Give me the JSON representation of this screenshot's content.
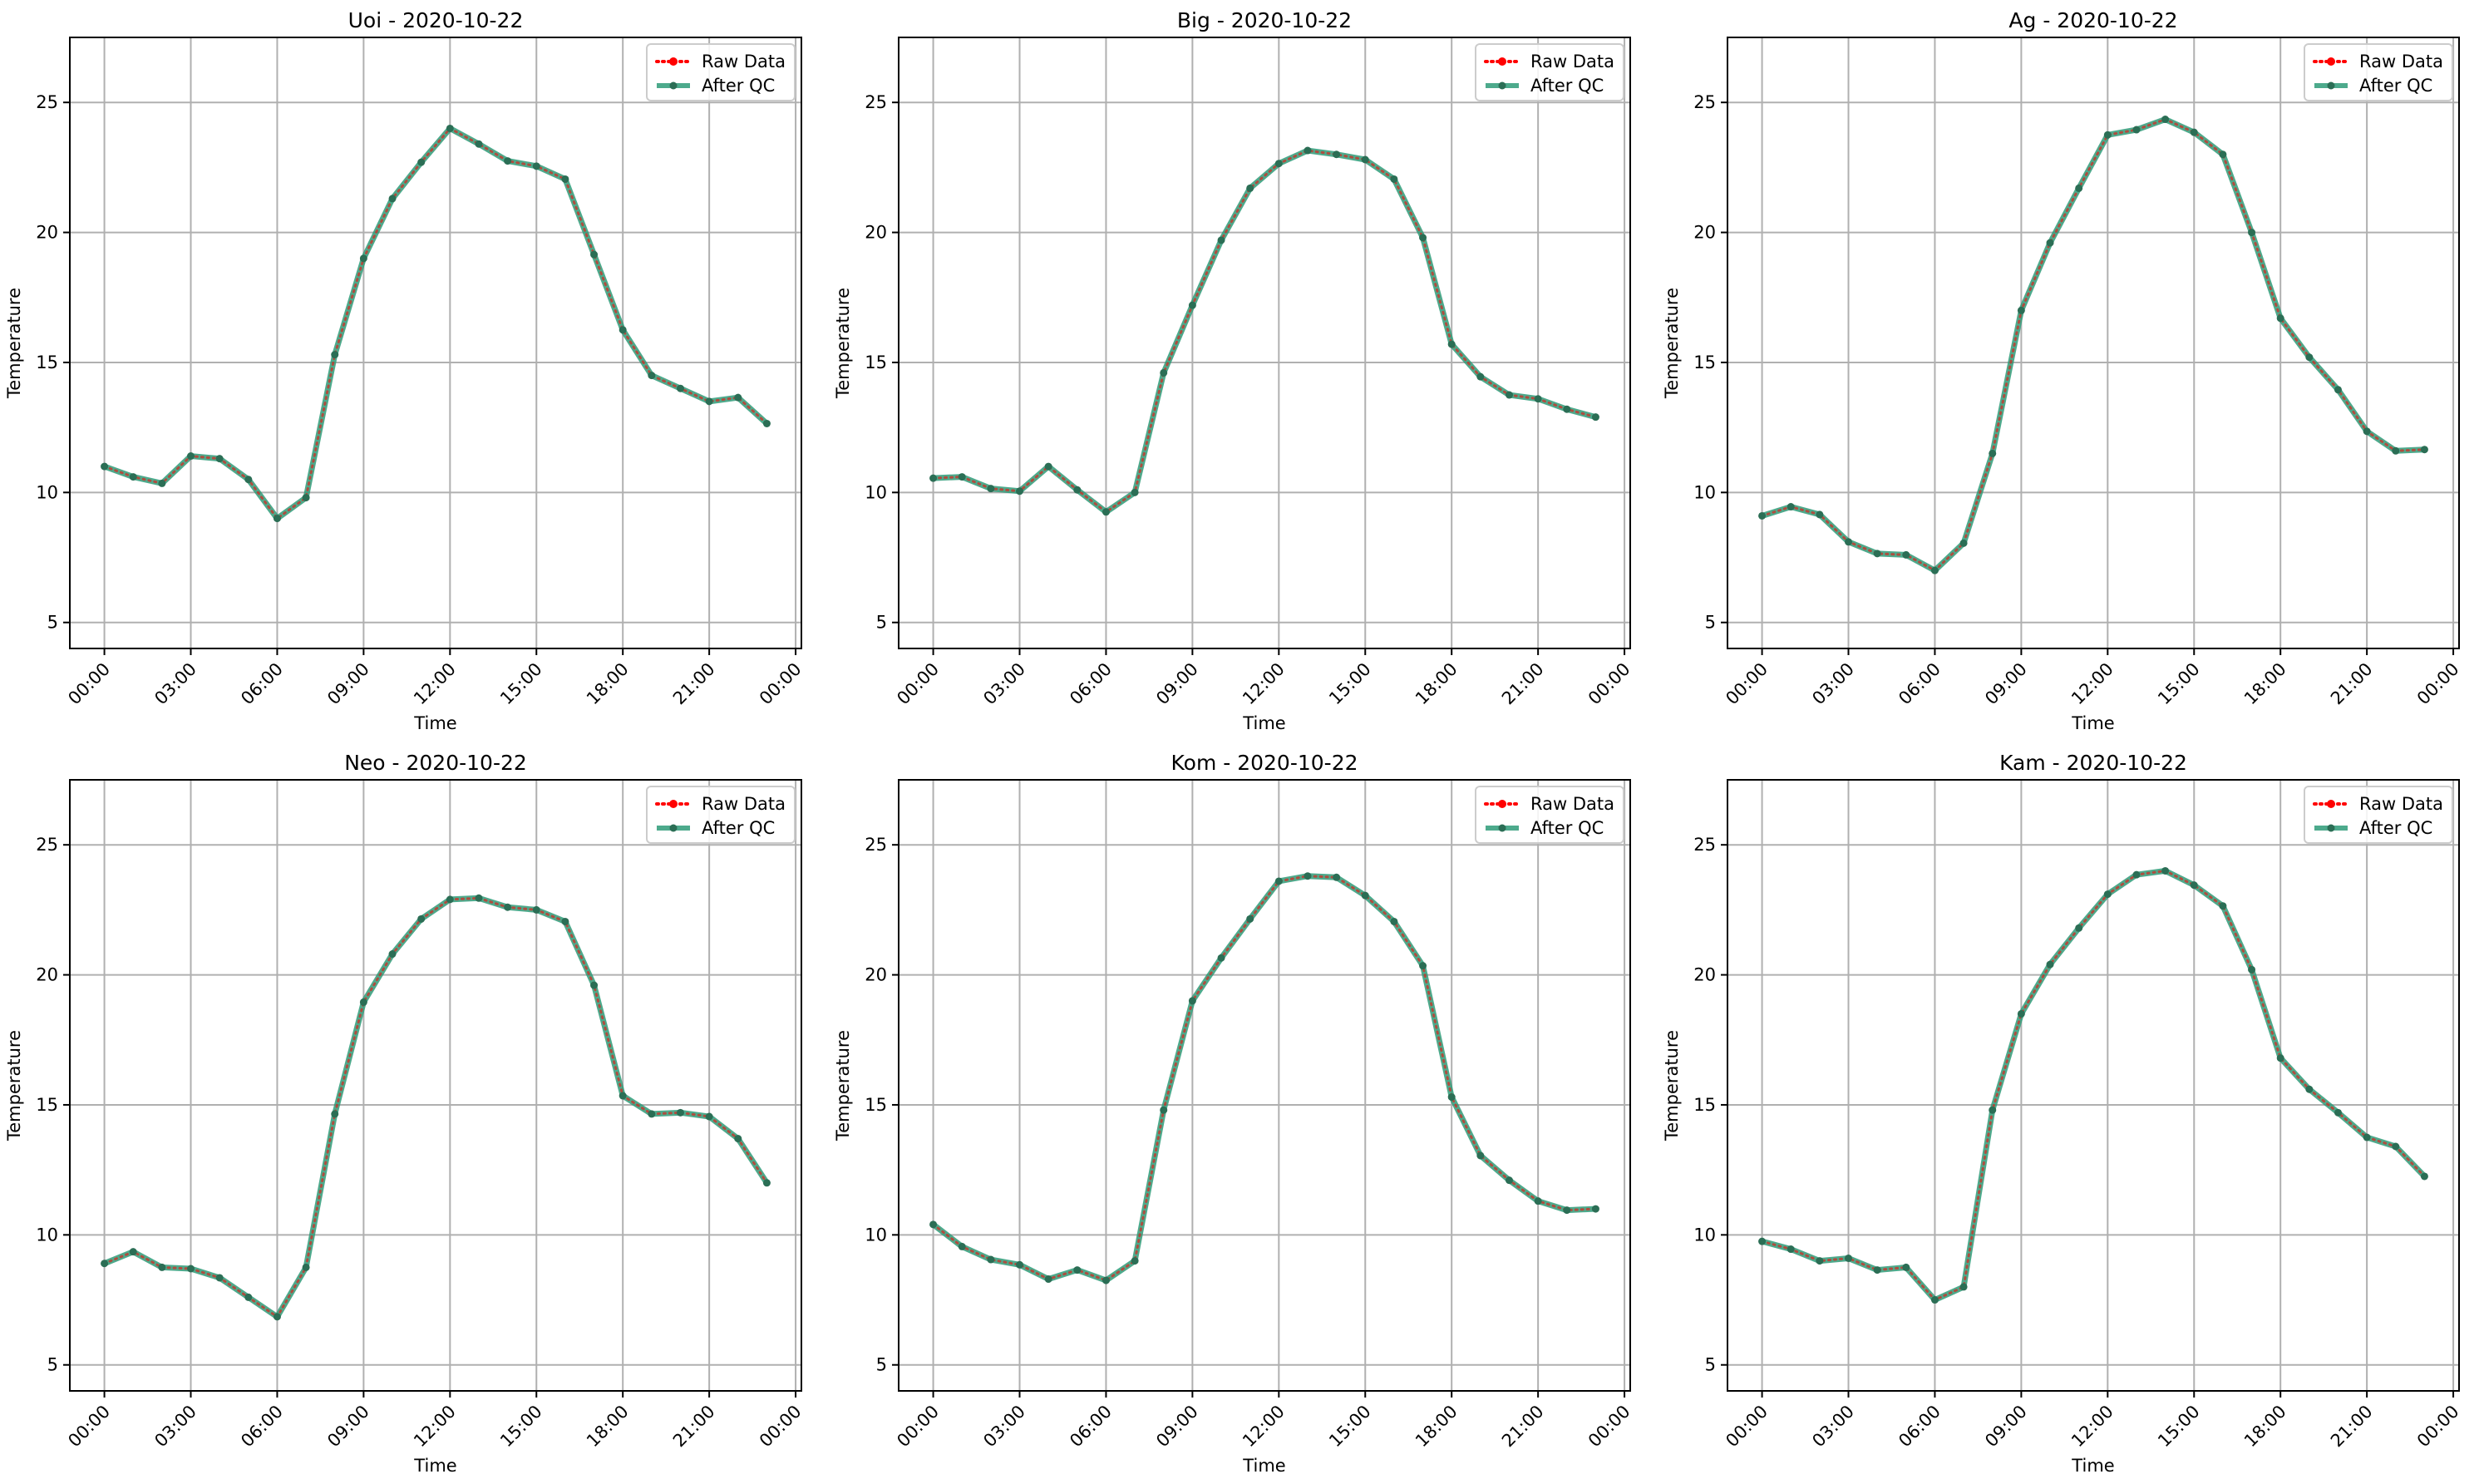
{
  "chart_data": [
    {
      "type": "line",
      "title": "Uoi - 2020-10-22",
      "xlabel": "Time",
      "ylabel": "Temperature",
      "x": [
        "00:00",
        "01:00",
        "02:00",
        "03:00",
        "04:00",
        "05:00",
        "06:00",
        "07:00",
        "08:00",
        "09:00",
        "10:00",
        "11:00",
        "12:00",
        "13:00",
        "14:00",
        "15:00",
        "16:00",
        "17:00",
        "18:00",
        "19:00",
        "20:00",
        "21:00",
        "22:00",
        "23:00"
      ],
      "xticks": [
        "00:00",
        "03:00",
        "06:00",
        "09:00",
        "12:00",
        "15:00",
        "18:00",
        "21:00",
        "00:00"
      ],
      "yticks": [
        "5",
        "10",
        "15",
        "20",
        "25"
      ],
      "xlim": [
        -1.2,
        24.2
      ],
      "ylim": [
        4,
        27.5
      ],
      "grid": true,
      "legend_position": "top-right",
      "series": [
        {
          "name": "Raw Data",
          "color": "#ff0000",
          "style": "dotted-with-markers",
          "values": [
            11.0,
            10.6,
            10.35,
            11.4,
            11.3,
            10.5,
            9.0,
            9.8,
            15.3,
            19.0,
            21.3,
            22.7,
            24.0,
            23.4,
            22.75,
            22.55,
            22.05,
            19.15,
            16.25,
            14.5,
            14.0,
            13.5,
            13.65,
            12.65
          ]
        },
        {
          "name": "After QC",
          "color": "#2e9b78",
          "style": "solid-with-markers",
          "values": [
            11.0,
            10.6,
            10.35,
            11.4,
            11.3,
            10.5,
            9.0,
            9.8,
            15.3,
            19.0,
            21.3,
            22.7,
            24.0,
            23.4,
            22.75,
            22.55,
            22.05,
            19.15,
            16.25,
            14.5,
            14.0,
            13.5,
            13.65,
            12.65
          ]
        }
      ]
    },
    {
      "type": "line",
      "title": "Big - 2020-10-22",
      "xlabel": "Time",
      "ylabel": "Temperature",
      "x": [
        "00:00",
        "01:00",
        "02:00",
        "03:00",
        "04:00",
        "05:00",
        "06:00",
        "07:00",
        "08:00",
        "09:00",
        "10:00",
        "11:00",
        "12:00",
        "13:00",
        "14:00",
        "15:00",
        "16:00",
        "17:00",
        "18:00",
        "19:00",
        "20:00",
        "21:00",
        "22:00",
        "23:00"
      ],
      "xticks": [
        "00:00",
        "03:00",
        "06:00",
        "09:00",
        "12:00",
        "15:00",
        "18:00",
        "21:00",
        "00:00"
      ],
      "yticks": [
        "5",
        "10",
        "15",
        "20",
        "25"
      ],
      "xlim": [
        -1.2,
        24.2
      ],
      "ylim": [
        4,
        27.5
      ],
      "grid": true,
      "legend_position": "top-right",
      "series": [
        {
          "name": "Raw Data",
          "color": "#ff0000",
          "style": "dotted-with-markers",
          "values": [
            10.55,
            10.6,
            10.15,
            10.05,
            11.0,
            10.1,
            9.25,
            10.0,
            14.6,
            17.2,
            19.7,
            21.7,
            22.65,
            23.15,
            23.0,
            22.8,
            22.05,
            19.8,
            15.7,
            14.45,
            13.75,
            13.6,
            13.2,
            12.9
          ]
        },
        {
          "name": "After QC",
          "color": "#2e9b78",
          "style": "solid-with-markers",
          "values": [
            10.55,
            10.6,
            10.15,
            10.05,
            11.0,
            10.1,
            9.25,
            10.0,
            14.6,
            17.2,
            19.7,
            21.7,
            22.65,
            23.15,
            23.0,
            22.8,
            22.05,
            19.8,
            15.7,
            14.45,
            13.75,
            13.6,
            13.2,
            12.9
          ]
        }
      ]
    },
    {
      "type": "line",
      "title": "Ag - 2020-10-22",
      "xlabel": "Time",
      "ylabel": "Temperature",
      "x": [
        "00:00",
        "01:00",
        "02:00",
        "03:00",
        "04:00",
        "05:00",
        "06:00",
        "07:00",
        "08:00",
        "09:00",
        "10:00",
        "11:00",
        "12:00",
        "13:00",
        "14:00",
        "15:00",
        "16:00",
        "17:00",
        "18:00",
        "19:00",
        "20:00",
        "21:00",
        "22:00",
        "23:00"
      ],
      "xticks": [
        "00:00",
        "03:00",
        "06:00",
        "09:00",
        "12:00",
        "15:00",
        "18:00",
        "21:00",
        "00:00"
      ],
      "yticks": [
        "5",
        "10",
        "15",
        "20",
        "25"
      ],
      "xlim": [
        -1.2,
        24.2
      ],
      "ylim": [
        4,
        27.5
      ],
      "grid": true,
      "legend_position": "top-right",
      "series": [
        {
          "name": "Raw Data",
          "color": "#ff0000",
          "style": "dotted-with-markers",
          "values": [
            9.1,
            9.45,
            9.15,
            8.1,
            7.65,
            7.6,
            7.0,
            8.05,
            11.5,
            17.0,
            19.6,
            21.7,
            23.75,
            23.95,
            24.35,
            23.85,
            23.0,
            20.0,
            16.7,
            15.2,
            13.95,
            12.35,
            11.6,
            11.65
          ]
        },
        {
          "name": "After QC",
          "color": "#2e9b78",
          "style": "solid-with-markers",
          "values": [
            9.1,
            9.45,
            9.15,
            8.1,
            7.65,
            7.6,
            7.0,
            8.05,
            11.5,
            17.0,
            19.6,
            21.7,
            23.75,
            23.95,
            24.35,
            23.85,
            23.0,
            20.0,
            16.7,
            15.2,
            13.95,
            12.35,
            11.6,
            11.65
          ]
        }
      ]
    },
    {
      "type": "line",
      "title": "Neo - 2020-10-22",
      "xlabel": "Time",
      "ylabel": "Temperature",
      "x": [
        "00:00",
        "01:00",
        "02:00",
        "03:00",
        "04:00",
        "05:00",
        "06:00",
        "07:00",
        "08:00",
        "09:00",
        "10:00",
        "11:00",
        "12:00",
        "13:00",
        "14:00",
        "15:00",
        "16:00",
        "17:00",
        "18:00",
        "19:00",
        "20:00",
        "21:00",
        "22:00",
        "23:00"
      ],
      "xticks": [
        "00:00",
        "03:00",
        "06:00",
        "09:00",
        "12:00",
        "15:00",
        "18:00",
        "21:00",
        "00:00"
      ],
      "yticks": [
        "5",
        "10",
        "15",
        "20",
        "25"
      ],
      "xlim": [
        -1.2,
        24.2
      ],
      "ylim": [
        4,
        27.5
      ],
      "grid": true,
      "legend_position": "top-right",
      "series": [
        {
          "name": "Raw Data",
          "color": "#ff0000",
          "style": "dotted-with-markers",
          "values": [
            8.9,
            9.35,
            8.75,
            8.7,
            8.35,
            7.6,
            6.85,
            8.75,
            14.65,
            18.95,
            20.8,
            22.15,
            22.9,
            22.95,
            22.6,
            22.5,
            22.05,
            19.6,
            15.35,
            14.65,
            14.7,
            14.55,
            13.7,
            12.0
          ]
        },
        {
          "name": "After QC",
          "color": "#2e9b78",
          "style": "solid-with-markers",
          "values": [
            8.9,
            9.35,
            8.75,
            8.7,
            8.35,
            7.6,
            6.85,
            8.75,
            14.65,
            18.95,
            20.8,
            22.15,
            22.9,
            22.95,
            22.6,
            22.5,
            22.05,
            19.6,
            15.35,
            14.65,
            14.7,
            14.55,
            13.7,
            12.0
          ]
        }
      ]
    },
    {
      "type": "line",
      "title": "Kom - 2020-10-22",
      "xlabel": "Time",
      "ylabel": "Temperature",
      "x": [
        "00:00",
        "01:00",
        "02:00",
        "03:00",
        "04:00",
        "05:00",
        "06:00",
        "07:00",
        "08:00",
        "09:00",
        "10:00",
        "11:00",
        "12:00",
        "13:00",
        "14:00",
        "15:00",
        "16:00",
        "17:00",
        "18:00",
        "19:00",
        "20:00",
        "21:00",
        "22:00",
        "23:00"
      ],
      "xticks": [
        "00:00",
        "03:00",
        "06:00",
        "09:00",
        "12:00",
        "15:00",
        "18:00",
        "21:00",
        "00:00"
      ],
      "yticks": [
        "5",
        "10",
        "15",
        "20",
        "25"
      ],
      "xlim": [
        -1.2,
        24.2
      ],
      "ylim": [
        4,
        27.5
      ],
      "grid": true,
      "legend_position": "top-right",
      "series": [
        {
          "name": "Raw Data",
          "color": "#ff0000",
          "style": "dotted-with-markers",
          "values": [
            10.4,
            9.55,
            9.05,
            8.85,
            8.3,
            8.65,
            8.25,
            9.0,
            14.8,
            19.0,
            20.65,
            22.15,
            23.6,
            23.8,
            23.75,
            23.05,
            22.05,
            20.35,
            15.3,
            13.05,
            12.1,
            11.3,
            10.95,
            11.0
          ]
        },
        {
          "name": "After QC",
          "color": "#2e9b78",
          "style": "solid-with-markers",
          "values": [
            10.4,
            9.55,
            9.05,
            8.85,
            8.3,
            8.65,
            8.25,
            9.0,
            14.8,
            19.0,
            20.65,
            22.15,
            23.6,
            23.8,
            23.75,
            23.05,
            22.05,
            20.35,
            15.3,
            13.05,
            12.1,
            11.3,
            10.95,
            11.0
          ]
        }
      ]
    },
    {
      "type": "line",
      "title": "Kam - 2020-10-22",
      "xlabel": "Time",
      "ylabel": "Temperature",
      "x": [
        "00:00",
        "01:00",
        "02:00",
        "03:00",
        "04:00",
        "05:00",
        "06:00",
        "07:00",
        "08:00",
        "09:00",
        "10:00",
        "11:00",
        "12:00",
        "13:00",
        "14:00",
        "15:00",
        "16:00",
        "17:00",
        "18:00",
        "19:00",
        "20:00",
        "21:00",
        "22:00",
        "23:00"
      ],
      "xticks": [
        "00:00",
        "03:00",
        "06:00",
        "09:00",
        "12:00",
        "15:00",
        "18:00",
        "21:00",
        "00:00"
      ],
      "yticks": [
        "5",
        "10",
        "15",
        "20",
        "25"
      ],
      "xlim": [
        -1.2,
        24.2
      ],
      "ylim": [
        4,
        27.5
      ],
      "grid": true,
      "legend_position": "top-right",
      "series": [
        {
          "name": "Raw Data",
          "color": "#ff0000",
          "style": "dotted-with-markers",
          "values": [
            9.75,
            9.45,
            9.0,
            9.1,
            8.65,
            8.75,
            7.5,
            8.0,
            14.8,
            18.5,
            20.4,
            21.8,
            23.1,
            23.85,
            24.0,
            23.45,
            22.65,
            20.2,
            16.8,
            15.6,
            14.7,
            13.75,
            13.4,
            12.25
          ]
        },
        {
          "name": "After QC",
          "color": "#2e9b78",
          "style": "solid-with-markers",
          "values": [
            9.75,
            9.45,
            9.0,
            9.1,
            8.65,
            8.75,
            7.5,
            8.0,
            14.8,
            18.5,
            20.4,
            21.8,
            23.1,
            23.85,
            24.0,
            23.45,
            22.65,
            20.2,
            16.8,
            15.6,
            14.7,
            13.75,
            13.4,
            12.25
          ]
        }
      ]
    }
  ]
}
